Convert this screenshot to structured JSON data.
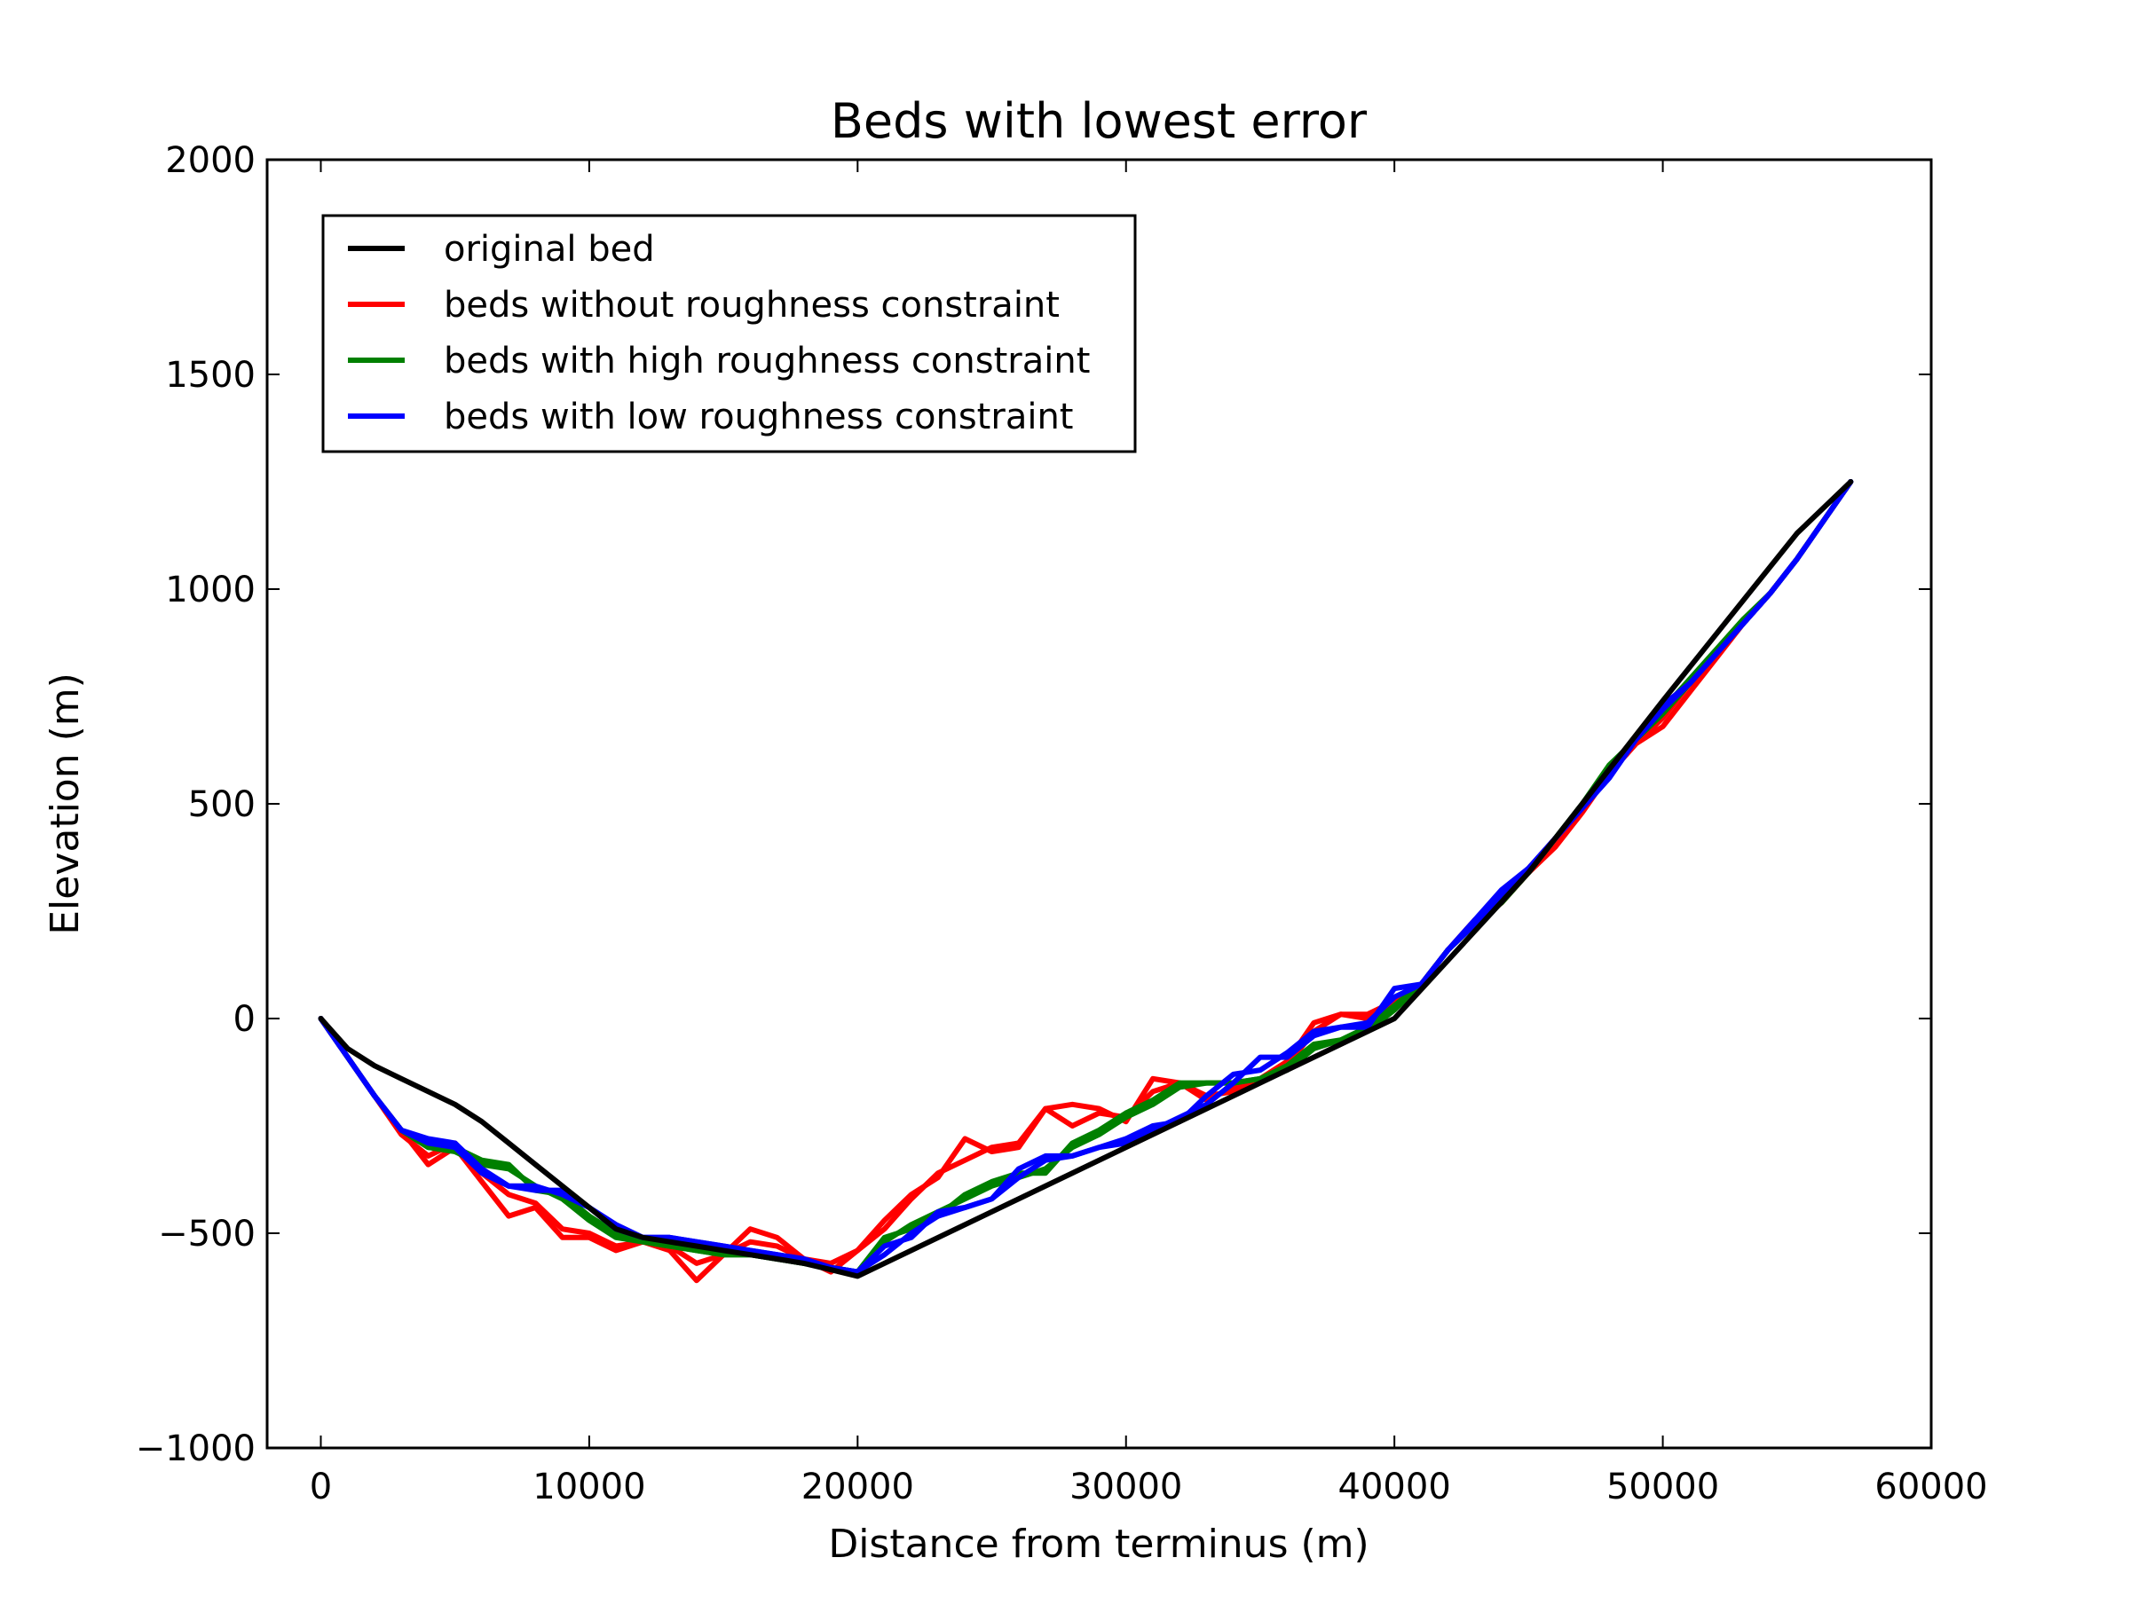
{
  "chart_data": {
    "type": "line",
    "title": "Beds with lowest error",
    "xlabel": "Distance from terminus (m)",
    "ylabel": "Elevation (m)",
    "xlim": [
      -2000,
      60000
    ],
    "ylim": [
      -1000,
      2000
    ],
    "xticks": [
      0,
      10000,
      20000,
      30000,
      40000,
      50000,
      60000
    ],
    "xtick_labels": [
      "0",
      "10000",
      "20000",
      "30000",
      "40000",
      "50000",
      "60000"
    ],
    "yticks": [
      2000,
      1500,
      1000,
      500,
      0,
      -500,
      -1000
    ],
    "ytick_labels": [
      "2000",
      "1500",
      "1000",
      "500",
      "0",
      "−500",
      "−1000"
    ],
    "grid": false,
    "legend_position": "top-left",
    "legend": [
      {
        "label": "original bed",
        "color": "#000000"
      },
      {
        "label": "beds without roughness constraint",
        "color": "#ff0000"
      },
      {
        "label": "beds with high roughness constraint",
        "color": "#008000"
      },
      {
        "label": "beds with low roughness constraint",
        "color": "#0000ff"
      }
    ],
    "series": [
      {
        "group": "beds without roughness constraint",
        "color": "#ff0000",
        "x": [
          0,
          1000,
          2000,
          3000,
          4000,
          5000,
          6000,
          7000,
          8000,
          9000,
          10000,
          11000,
          12000,
          13000,
          14000,
          15000,
          16000,
          17000,
          18000,
          19000,
          20000,
          21000,
          22000,
          23000,
          24000,
          25000,
          26000,
          27000,
          28000,
          29000,
          30000,
          31000,
          32000,
          33000,
          34000,
          35000,
          36000,
          37000,
          38000,
          39000,
          40000,
          41000,
          42000,
          43000,
          44000,
          45000,
          46000,
          47000,
          48000,
          49000,
          50000,
          51000,
          52000,
          53000,
          54000,
          55000,
          56000,
          57000
        ],
        "y": [
          0,
          -90,
          -180,
          -260,
          -340,
          -300,
          -380,
          -460,
          -440,
          -510,
          -510,
          -540,
          -520,
          -540,
          -610,
          -550,
          -490,
          -510,
          -560,
          -590,
          -540,
          -470,
          -410,
          -370,
          -280,
          -310,
          -300,
          -210,
          -200,
          -210,
          -240,
          -140,
          -150,
          -180,
          -170,
          -140,
          -100,
          -10,
          10,
          10,
          40,
          80,
          160,
          220,
          270,
          340,
          400,
          480,
          570,
          640,
          680,
          760,
          840,
          920,
          990,
          1070,
          1160,
          1250
        ]
      },
      {
        "group": "beds without roughness constraint",
        "color": "#ff0000",
        "x": [
          0,
          1000,
          2000,
          3000,
          4000,
          5000,
          6000,
          7000,
          8000,
          9000,
          10000,
          11000,
          12000,
          13000,
          14000,
          15000,
          16000,
          17000,
          18000,
          19000,
          20000,
          21000,
          22000,
          23000,
          24000,
          25000,
          26000,
          27000,
          28000,
          29000,
          30000,
          31000,
          32000,
          33000,
          34000,
          35000,
          36000,
          37000,
          38000,
          39000,
          40000,
          41000,
          42000,
          43000,
          44000,
          45000,
          46000,
          47000,
          48000,
          49000,
          50000,
          51000,
          52000,
          53000,
          54000,
          55000,
          56000,
          57000
        ],
        "y": [
          0,
          -90,
          -180,
          -270,
          -320,
          -290,
          -360,
          -410,
          -430,
          -490,
          -500,
          -530,
          -520,
          -530,
          -570,
          -550,
          -520,
          -530,
          -560,
          -570,
          -540,
          -490,
          -420,
          -360,
          -330,
          -300,
          -290,
          -210,
          -250,
          -220,
          -230,
          -170,
          -150,
          -190,
          -160,
          -140,
          -110,
          -30,
          10,
          0,
          30,
          80,
          160,
          230,
          270,
          350,
          420,
          490,
          570,
          640,
          700,
          780,
          850,
          920,
          990,
          1070,
          1160,
          1250
        ]
      },
      {
        "group": "beds with high roughness constraint",
        "color": "#008000",
        "x": [
          0,
          1000,
          2000,
          3000,
          4000,
          5000,
          6000,
          7000,
          8000,
          9000,
          10000,
          11000,
          12000,
          13000,
          14000,
          15000,
          16000,
          17000,
          18000,
          19000,
          20000,
          21000,
          22000,
          23000,
          24000,
          25000,
          26000,
          27000,
          28000,
          29000,
          30000,
          31000,
          32000,
          33000,
          34000,
          35000,
          36000,
          37000,
          38000,
          39000,
          40000,
          41000,
          42000,
          43000,
          44000,
          45000,
          46000,
          47000,
          48000,
          49000,
          50000,
          51000,
          52000,
          53000,
          54000,
          55000,
          56000,
          57000
        ],
        "y": [
          0,
          -90,
          -180,
          -260,
          -300,
          -300,
          -330,
          -340,
          -400,
          -410,
          -460,
          -500,
          -520,
          -530,
          -540,
          -550,
          -550,
          -560,
          -570,
          -580,
          -590,
          -510,
          -490,
          -460,
          -410,
          -380,
          -360,
          -360,
          -290,
          -260,
          -220,
          -190,
          -150,
          -150,
          -150,
          -140,
          -110,
          -60,
          -50,
          -20,
          30,
          80,
          160,
          220,
          270,
          340,
          420,
          500,
          590,
          650,
          710,
          780,
          850,
          920,
          990,
          1070,
          1160,
          1250
        ]
      },
      {
        "group": "beds with high roughness constraint",
        "color": "#008000",
        "x": [
          0,
          1000,
          2000,
          3000,
          4000,
          5000,
          6000,
          7000,
          8000,
          9000,
          10000,
          11000,
          12000,
          13000,
          14000,
          15000,
          16000,
          17000,
          18000,
          19000,
          20000,
          21000,
          22000,
          23000,
          24000,
          25000,
          26000,
          27000,
          28000,
          29000,
          30000,
          31000,
          32000,
          33000,
          34000,
          35000,
          36000,
          37000,
          38000,
          39000,
          40000,
          41000,
          42000,
          43000,
          44000,
          45000,
          46000,
          47000,
          48000,
          49000,
          50000,
          51000,
          52000,
          53000,
          54000,
          55000,
          56000,
          57000
        ],
        "y": [
          0,
          -90,
          -180,
          -260,
          -300,
          -310,
          -340,
          -350,
          -390,
          -420,
          -470,
          -510,
          -520,
          -530,
          -540,
          -550,
          -550,
          -560,
          -570,
          -580,
          -590,
          -520,
          -480,
          -450,
          -420,
          -390,
          -370,
          -350,
          -300,
          -270,
          -230,
          -200,
          -160,
          -150,
          -150,
          -140,
          -120,
          -70,
          -50,
          -30,
          20,
          80,
          160,
          220,
          280,
          340,
          420,
          500,
          580,
          650,
          720,
          790,
          860,
          930,
          990,
          1070,
          1160,
          1250
        ]
      },
      {
        "group": "beds with low roughness constraint",
        "color": "#0000ff",
        "x": [
          0,
          1000,
          2000,
          3000,
          4000,
          5000,
          6000,
          7000,
          8000,
          9000,
          10000,
          11000,
          12000,
          13000,
          14000,
          15000,
          16000,
          17000,
          18000,
          19000,
          20000,
          21000,
          22000,
          23000,
          24000,
          25000,
          26000,
          27000,
          28000,
          29000,
          30000,
          31000,
          32000,
          33000,
          34000,
          35000,
          36000,
          37000,
          38000,
          39000,
          40000,
          41000,
          42000,
          43000,
          44000,
          45000,
          46000,
          47000,
          48000,
          49000,
          50000,
          51000,
          52000,
          53000,
          54000,
          55000,
          56000,
          57000
        ],
        "y": [
          0,
          -90,
          -180,
          -260,
          -280,
          -290,
          -350,
          -390,
          -390,
          -410,
          -440,
          -490,
          -510,
          -510,
          -520,
          -530,
          -540,
          -550,
          -560,
          -580,
          -590,
          -530,
          -510,
          -450,
          -440,
          -420,
          -350,
          -320,
          -320,
          -300,
          -280,
          -250,
          -240,
          -180,
          -130,
          -120,
          -80,
          -30,
          -20,
          -20,
          70,
          80,
          160,
          230,
          300,
          350,
          420,
          490,
          560,
          650,
          720,
          780,
          850,
          920,
          990,
          1070,
          1160,
          1250
        ]
      },
      {
        "group": "beds with low roughness constraint",
        "color": "#0000ff",
        "x": [
          0,
          1000,
          2000,
          3000,
          4000,
          5000,
          6000,
          7000,
          8000,
          9000,
          10000,
          11000,
          12000,
          13000,
          14000,
          15000,
          16000,
          17000,
          18000,
          19000,
          20000,
          21000,
          22000,
          23000,
          24000,
          25000,
          26000,
          27000,
          28000,
          29000,
          30000,
          31000,
          32000,
          33000,
          34000,
          35000,
          36000,
          37000,
          38000,
          39000,
          40000,
          41000,
          42000,
          43000,
          44000,
          45000,
          46000,
          47000,
          48000,
          49000,
          50000,
          51000,
          52000,
          53000,
          54000,
          55000,
          56000,
          57000
        ],
        "y": [
          0,
          -90,
          -180,
          -260,
          -290,
          -300,
          -360,
          -390,
          -400,
          -400,
          -440,
          -480,
          -510,
          -510,
          -520,
          -530,
          -540,
          -550,
          -560,
          -580,
          -590,
          -550,
          -500,
          -460,
          -440,
          -420,
          -370,
          -330,
          -320,
          -300,
          -290,
          -260,
          -230,
          -200,
          -150,
          -90,
          -90,
          -40,
          -20,
          -10,
          50,
          80,
          160,
          220,
          290,
          350,
          420,
          490,
          560,
          650,
          730,
          780,
          850,
          920,
          990,
          1070,
          1160,
          1250
        ]
      },
      {
        "group": "original bed",
        "color": "#000000",
        "x": [
          0,
          1000,
          2000,
          3000,
          4000,
          5000,
          6000,
          7000,
          8000,
          9000,
          10000,
          11000,
          12000,
          13000,
          14000,
          15000,
          16000,
          17000,
          18000,
          19000,
          20000,
          25000,
          30000,
          35000,
          40000,
          45000,
          50000,
          55000,
          57000
        ],
        "y": [
          0,
          -70,
          -110,
          -140,
          -170,
          -200,
          -240,
          -290,
          -340,
          -390,
          -440,
          -490,
          -510,
          -520,
          -530,
          -540,
          -550,
          -560,
          -570,
          -585,
          -600,
          -450,
          -300,
          -150,
          0,
          340,
          740,
          1130,
          1250
        ]
      }
    ]
  }
}
